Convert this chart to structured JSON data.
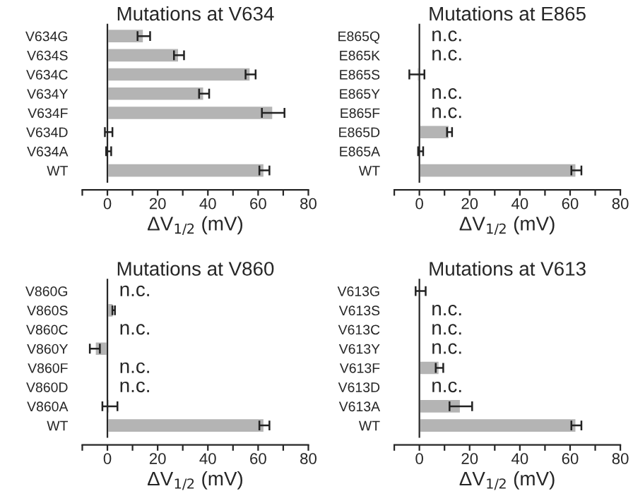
{
  "chart_data": [
    {
      "type": "bar",
      "orientation": "horizontal",
      "title": "Mutations at V634",
      "xlabel": "ΔV$_{1/2}$ (mV)",
      "color": "#b4b4b4",
      "categories": [
        "V634G",
        "V634S",
        "V634C",
        "V634Y",
        "V634F",
        "V634D",
        "V634A",
        "WT"
      ],
      "values": [
        14.5,
        28.5,
        57,
        38.5,
        66,
        0.5,
        0.5,
        62.5
      ],
      "errors": [
        2.5,
        2,
        2,
        2,
        4.5,
        1.5,
        1,
        2
      ],
      "xlim": [
        -10,
        80
      ],
      "xticks": [
        {
          "value": -10,
          "label": null
        },
        0,
        {
          "value": 10,
          "label": null
        },
        20,
        {
          "value": 30,
          "label": null
        },
        40,
        {
          "value": 50,
          "label": null
        },
        60,
        {
          "value": 70,
          "label": null
        },
        80
      ]
    },
    {
      "type": "bar",
      "orientation": "horizontal",
      "title": "Mutations at E865",
      "xlabel": "ΔV$_{1/2}$ (mV)",
      "color": "#b4b4b4",
      "categories": [
        "E865Q",
        "E865K",
        "E865S",
        "E865Y",
        "E865F",
        "E865D",
        "E865A",
        "WT"
      ],
      "values": [
        null,
        null,
        -1,
        null,
        null,
        12,
        0.5,
        62.5
      ],
      "errors": [
        null,
        null,
        3,
        null,
        null,
        1,
        1,
        2
      ],
      "annotations": [
        "n.c.",
        "n.c.",
        "n.c.",
        "n.c."
      ],
      "xlim": [
        -10,
        80
      ],
      "xticks": [
        {
          "value": -10,
          "label": null
        },
        0,
        {
          "value": 10,
          "label": null
        },
        20,
        {
          "value": 30,
          "label": null
        },
        40,
        {
          "value": 50,
          "label": null
        },
        60,
        {
          "value": 70,
          "label": null
        },
        80
      ]
    },
    {
      "type": "bar",
      "orientation": "horizontal",
      "title": "Mutations at V860",
      "xlabel": "ΔV$_{1/2}$ (mV)",
      "color": "#b4b4b4",
      "categories": [
        "V860G",
        "V860S",
        "V860C",
        "V860Y",
        "V860F",
        "V860D",
        "V860A",
        "WT"
      ],
      "values": [
        null,
        2.5,
        null,
        -5,
        null,
        null,
        1,
        62.5
      ],
      "errors": [
        null,
        0.5,
        null,
        2,
        null,
        null,
        3,
        2
      ],
      "annotations": [
        "n.c.",
        "n.c.",
        "n.c.",
        "n.c."
      ],
      "xlim": [
        -10,
        80
      ],
      "xticks": [
        {
          "value": -10,
          "label": null
        },
        0,
        {
          "value": 10,
          "label": null
        },
        20,
        {
          "value": 30,
          "label": null
        },
        40,
        {
          "value": 50,
          "label": null
        },
        60,
        {
          "value": 70,
          "label": null
        },
        80
      ]
    },
    {
      "type": "bar",
      "orientation": "horizontal",
      "title": "Mutations at V613",
      "xlabel": "ΔV$_{1/2}$ (mV)",
      "color": "#b4b4b4",
      "categories": [
        "V613G",
        "V613S",
        "V613C",
        "V613Y",
        "V613F",
        "V613D",
        "V613A",
        "WT"
      ],
      "values": [
        0.5,
        null,
        null,
        null,
        8,
        null,
        16.5,
        62.5
      ],
      "errors": [
        2,
        null,
        null,
        null,
        1.5,
        null,
        4.5,
        2
      ],
      "annotations": [
        "n.c.",
        "n.c.",
        "n.c.",
        "n.c."
      ],
      "xlim": [
        -10,
        80
      ],
      "xticks": [
        {
          "value": -10,
          "label": null
        },
        0,
        {
          "value": 10,
          "label": null
        },
        20,
        {
          "value": 30,
          "label": null
        },
        40,
        {
          "value": 50,
          "label": null
        },
        60,
        {
          "value": 70,
          "label": null
        },
        80
      ]
    }
  ]
}
